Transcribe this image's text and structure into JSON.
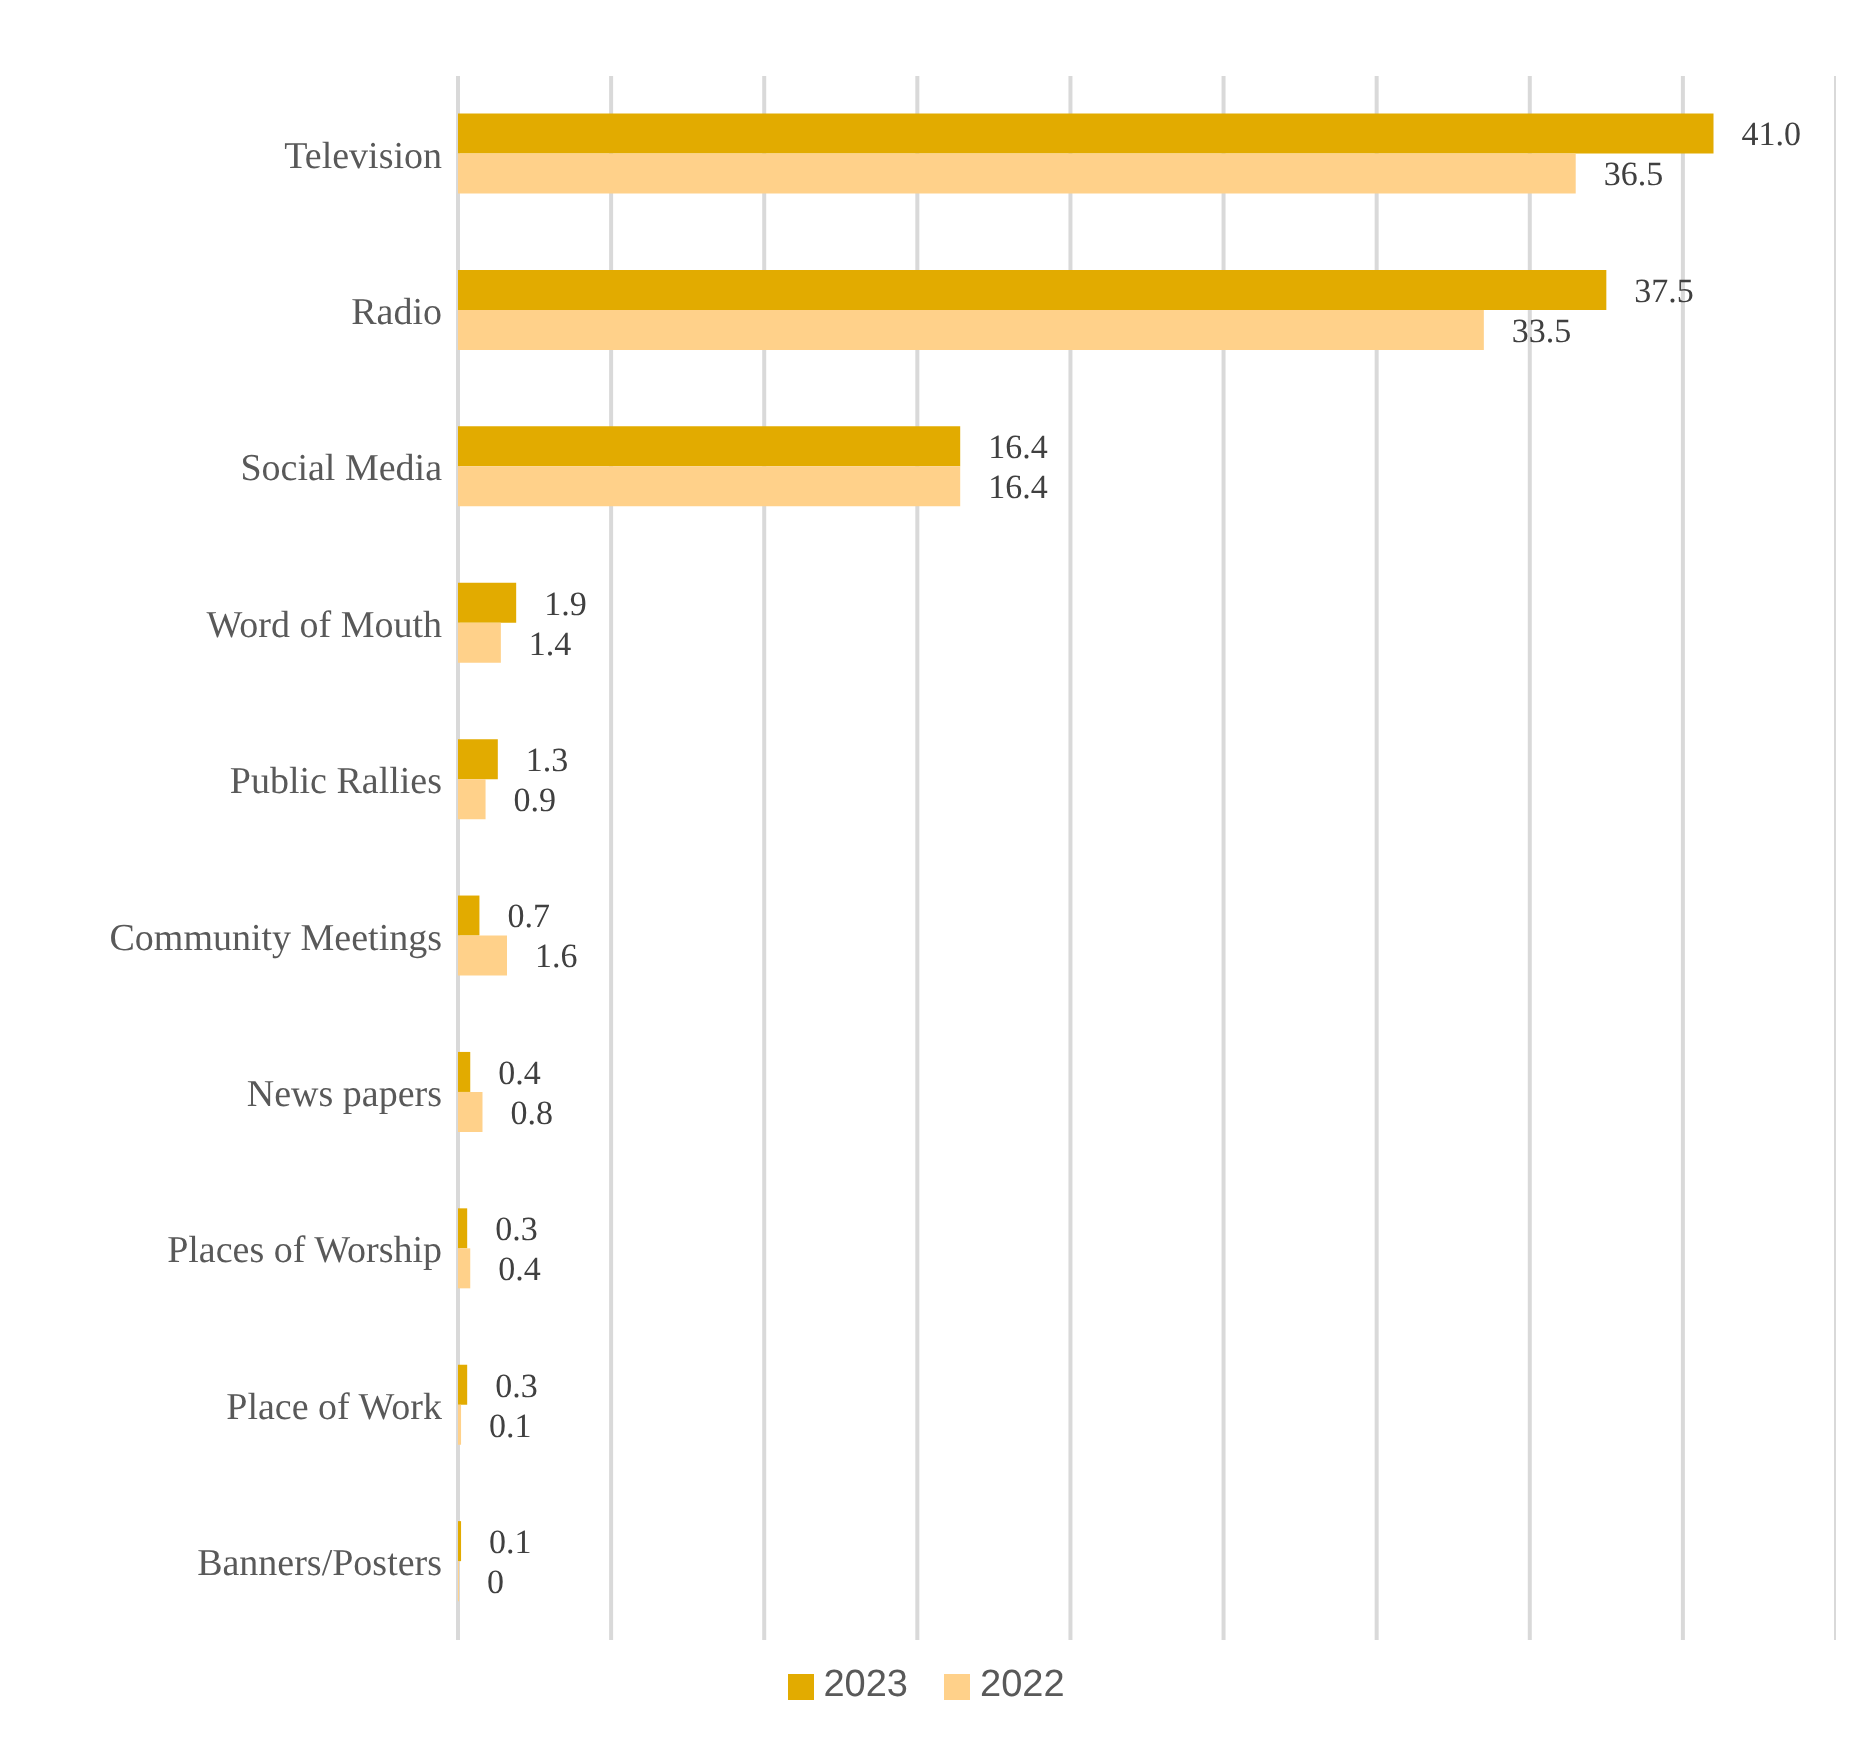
{
  "chart_data": {
    "type": "bar",
    "orientation": "horizontal",
    "categories": [
      "Television",
      "Radio",
      "Social Media",
      "Word of Mouth",
      "Public Rallies",
      "Community Meetings",
      "News papers",
      "Places of Worship",
      "Place of Work",
      "Banners/Posters"
    ],
    "series": [
      {
        "name": "2023",
        "color": "#e2ab00",
        "values": [
          41.0,
          37.5,
          16.4,
          1.9,
          1.3,
          0.7,
          0.4,
          0.3,
          0.3,
          0.1
        ],
        "value_labels": [
          "41.0",
          "37.5",
          "16.4",
          "1.9",
          "1.3",
          "0.7",
          "0.4",
          "0.3",
          "0.3",
          "0.1"
        ]
      },
      {
        "name": "2022",
        "color": "#ffd18a",
        "values": [
          36.5,
          33.5,
          16.4,
          1.4,
          0.9,
          1.6,
          0.8,
          0.4,
          0.1,
          0
        ],
        "value_labels": [
          "36.5",
          "33.5",
          "16.4",
          "1.4",
          "0.9",
          "1.6",
          "0.8",
          "0.4",
          "0.1",
          "0"
        ]
      }
    ],
    "xlim": [
      0,
      45
    ],
    "grid": "x",
    "legend": "bottom",
    "tick_labels": false
  }
}
